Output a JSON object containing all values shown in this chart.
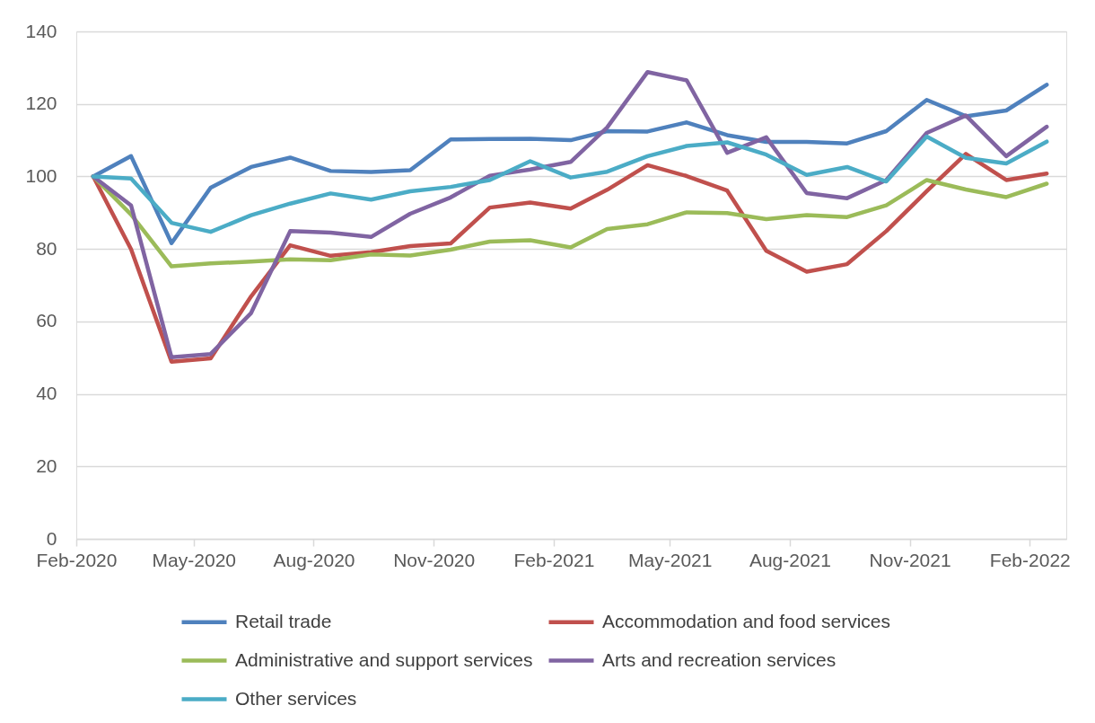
{
  "chart_data": {
    "type": "line",
    "x": [
      "2020-02-14",
      "2020-03-14",
      "2020-04-14",
      "2020-05-14",
      "2020-06-14",
      "2020-07-14",
      "2020-08-14",
      "2020-09-14",
      "2020-10-14",
      "2020-11-14",
      "2020-12-14",
      "2021-01-14",
      "2021-02-14",
      "2021-03-14",
      "2021-04-14",
      "2021-05-14",
      "2021-06-14",
      "2021-07-14",
      "2021-08-14",
      "2021-09-14",
      "2021-10-14",
      "2021-11-14",
      "2021-12-14",
      "2022-01-14",
      "2022-02-14"
    ],
    "xlim": [
      "2020-02-01",
      "2022-03-01"
    ],
    "xticks": [
      {
        "value": "2020-02-01",
        "label": "Feb-2020"
      },
      {
        "value": "2020-05-01",
        "label": "May-2020"
      },
      {
        "value": "2020-08-01",
        "label": "Aug-2020"
      },
      {
        "value": "2020-11-01",
        "label": "Nov-2020"
      },
      {
        "value": "2021-02-01",
        "label": "Feb-2021"
      },
      {
        "value": "2021-05-01",
        "label": "May-2021"
      },
      {
        "value": "2021-08-01",
        "label": "Aug-2021"
      },
      {
        "value": "2021-11-01",
        "label": "Nov-2021"
      },
      {
        "value": "2022-02-01",
        "label": "Feb-2022"
      }
    ],
    "ylim": [
      0,
      140
    ],
    "yticks": [
      0,
      20,
      40,
      60,
      80,
      100,
      120,
      140
    ],
    "grid": "y",
    "legend": "bottom",
    "line_style": "solid",
    "series": [
      {
        "name": "Retail trade",
        "color": "#4f81bd",
        "values": [
          100,
          105.6,
          81.6,
          96.9,
          102.6,
          105.2,
          101.5,
          101.2,
          101.7,
          110.2,
          110.3,
          110.4,
          110.0,
          112.5,
          112.4,
          114.9,
          111.4,
          109.5,
          109.5,
          109.1,
          112.5,
          121.1,
          116.6,
          118.2,
          125.3
        ]
      },
      {
        "name": "Accommodation and food services",
        "color": "#c0504d",
        "values": [
          100,
          79.9,
          48.9,
          49.8,
          66.9,
          81.0,
          78.1,
          79.1,
          80.8,
          81.5,
          91.4,
          92.8,
          91.1,
          96.3,
          103.1,
          100.1,
          96.1,
          79.5,
          73.7,
          75.8,
          84.9,
          95.9,
          106.2,
          99.0,
          100.8
        ]
      },
      {
        "name": "Administrative and support services",
        "color": "#9bbb59",
        "values": [
          100,
          89.5,
          75.2,
          76.0,
          76.5,
          77.1,
          76.9,
          78.5,
          78.2,
          79.8,
          82.0,
          82.4,
          80.4,
          85.5,
          86.8,
          90.1,
          89.9,
          88.2,
          89.3,
          88.8,
          92.0,
          99.0,
          96.4,
          94.3,
          98.0
        ]
      },
      {
        "name": "Arts and recreation services",
        "color": "#8064a2",
        "values": [
          100,
          92.0,
          50.1,
          51.0,
          62.3,
          84.9,
          84.5,
          83.3,
          89.7,
          94.2,
          100.2,
          101.9,
          104.0,
          113.5,
          128.8,
          126.5,
          106.5,
          110.8,
          95.4,
          94.0,
          99.0,
          112.0,
          116.8,
          105.6,
          113.7
        ]
      },
      {
        "name": "Other services",
        "color": "#4bacc6",
        "values": [
          100,
          99.4,
          87.2,
          84.7,
          89.3,
          92.5,
          95.3,
          93.6,
          95.9,
          97.1,
          99.0,
          104.2,
          99.7,
          101.3,
          105.6,
          108.4,
          109.4,
          106.0,
          100.4,
          102.6,
          98.6,
          111.0,
          105.1,
          103.6,
          109.6
        ]
      }
    ]
  }
}
